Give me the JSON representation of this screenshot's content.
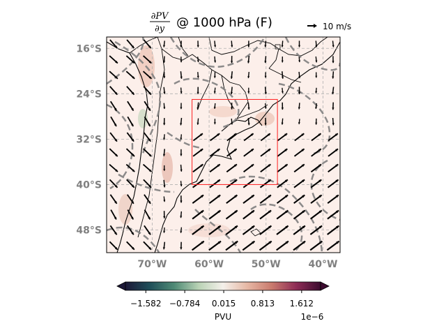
{
  "chart_data": {
    "type": "heatmap",
    "title": {
      "numerator": "∂PV",
      "denominator": "∂y",
      "rest": "@ 1000 hPa (F)"
    },
    "quiver_key": {
      "label": "10 m/s"
    },
    "map": {
      "lon_range": [
        -78,
        -37
      ],
      "lat_range": [
        -52,
        -14
      ],
      "lon_ticks": [
        -70,
        -60,
        -50,
        -40
      ],
      "lat_ticks": [
        -16,
        -24,
        -32,
        -40,
        -48
      ],
      "lon_tick_labels": [
        "70°W",
        "60°W",
        "50°W",
        "40°W"
      ],
      "lat_tick_labels": [
        "16°S",
        "24°S",
        "32°S",
        "40°S",
        "48°S"
      ],
      "grid": true,
      "box": {
        "lon": [
          -63,
          -48
        ],
        "lat": [
          -40,
          -25
        ],
        "color": "#ff2020"
      }
    },
    "colorbar": {
      "label": "PVU",
      "ticks": [
        -1.582,
        -0.784,
        0.015,
        0.813,
        1.612
      ],
      "tick_labels": [
        "−1.582",
        "−0.784",
        "0.015",
        "0.813",
        "1.612"
      ],
      "range": [
        -2.0,
        2.0
      ],
      "scale_label": "1e−6",
      "colors": [
        "#1c1837",
        "#1f4f59",
        "#4f8a75",
        "#b9d2b5",
        "#f4f0ea",
        "#e6b7a4",
        "#c97a6d",
        "#8e2c56",
        "#3c0b2f"
      ]
    },
    "contour_color": "#808080",
    "arrow_color": "#000000"
  }
}
